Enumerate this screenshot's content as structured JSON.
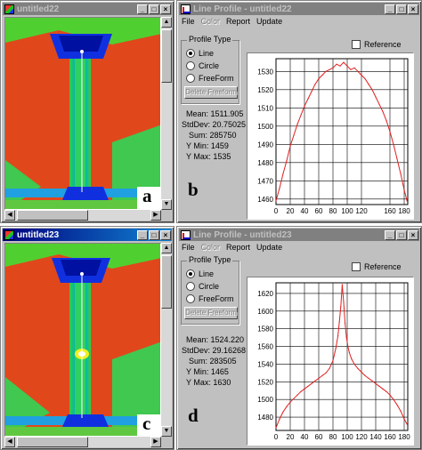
{
  "windows": {
    "image_a": {
      "title": "untitled22",
      "label": "a"
    },
    "image_c": {
      "title": "untitled23",
      "label": "c"
    },
    "profile_b": {
      "title": "Line Profile - untitled22",
      "label": "b"
    },
    "profile_d": {
      "title": "Line Profile - untitled23",
      "label": "d"
    }
  },
  "menu": {
    "file": "File",
    "color": "Color",
    "report": "Report",
    "update": "Update"
  },
  "profile_type": {
    "title": "Profile Type",
    "line": "Line",
    "circle": "Circle",
    "freeform": "FreeForm",
    "delete": "Delete Freeform",
    "selected": "Line"
  },
  "reference_label": "Reference",
  "stats_b": {
    "mean": "Mean: 1511.905",
    "stddev": "StdDev: 20.75025",
    "sum": "Sum: 285750",
    "ymin": "Y Min: 1459",
    "ymax": "Y Max: 1535"
  },
  "stats_d": {
    "mean": "Mean: 1524.220",
    "stddev": "StdDev: 29.16268",
    "sum": "Sum: 283505",
    "ymin": "Y Min: 1465",
    "ymax": "Y Max: 1630"
  },
  "colors": {
    "title_active": "#000080",
    "title_inactive": "#808080",
    "profile_line": "#e02020",
    "window_face": "#c0c0c0"
  },
  "chart_data": [
    {
      "type": "line",
      "series": [
        {
          "color": "#e02020",
          "x": [
            0,
            5,
            10,
            15,
            20,
            25,
            30,
            35,
            40,
            45,
            50,
            55,
            60,
            65,
            70,
            75,
            80,
            85,
            90,
            95,
            100,
            105,
            110,
            115,
            120,
            125,
            130,
            135,
            140,
            145,
            150,
            155,
            160,
            165,
            170,
            175,
            180,
            184
          ],
          "values": [
            1459,
            1466,
            1474,
            1481,
            1489,
            1495,
            1501,
            1506,
            1511,
            1515,
            1519,
            1523,
            1526,
            1528,
            1530,
            1531,
            1532,
            1534,
            1533,
            1535,
            1533,
            1531,
            1532,
            1530,
            1528,
            1526,
            1523,
            1520,
            1516,
            1512,
            1508,
            1503,
            1497,
            1490,
            1482,
            1474,
            1465,
            1459
          ]
        }
      ],
      "xticks": [
        0,
        20,
        40,
        60,
        80,
        100,
        120,
        160,
        180
      ],
      "yticks": [
        1460,
        1470,
        1480,
        1490,
        1500,
        1510,
        1520,
        1530
      ],
      "xlim": [
        0,
        185
      ],
      "ylim": [
        1457,
        1537
      ],
      "grid": true
    },
    {
      "type": "line",
      "series": [
        {
          "color": "#e02020",
          "x": [
            0,
            5,
            10,
            15,
            20,
            25,
            30,
            35,
            40,
            45,
            50,
            55,
            60,
            65,
            70,
            75,
            80,
            84,
            87,
            89,
            91,
            93,
            95,
            97,
            99,
            101,
            103,
            106,
            110,
            115,
            120,
            125,
            130,
            135,
            140,
            145,
            150,
            155,
            160,
            165,
            170,
            175,
            180,
            184
          ],
          "values": [
            1468,
            1478,
            1486,
            1492,
            1497,
            1501,
            1505,
            1509,
            1512,
            1515,
            1518,
            1521,
            1524,
            1527,
            1530,
            1535,
            1544,
            1558,
            1572,
            1588,
            1605,
            1630,
            1610,
            1586,
            1570,
            1560,
            1553,
            1546,
            1540,
            1535,
            1531,
            1527,
            1524,
            1521,
            1518,
            1515,
            1512,
            1509,
            1505,
            1500,
            1494,
            1487,
            1478,
            1472
          ]
        }
      ],
      "xticks": [
        0,
        20,
        40,
        60,
        80,
        100,
        120,
        140,
        160,
        180
      ],
      "yticks": [
        1480,
        1500,
        1520,
        1540,
        1560,
        1580,
        1600,
        1620
      ],
      "xlim": [
        0,
        185
      ],
      "ylim": [
        1465,
        1632
      ],
      "grid": true
    }
  ]
}
